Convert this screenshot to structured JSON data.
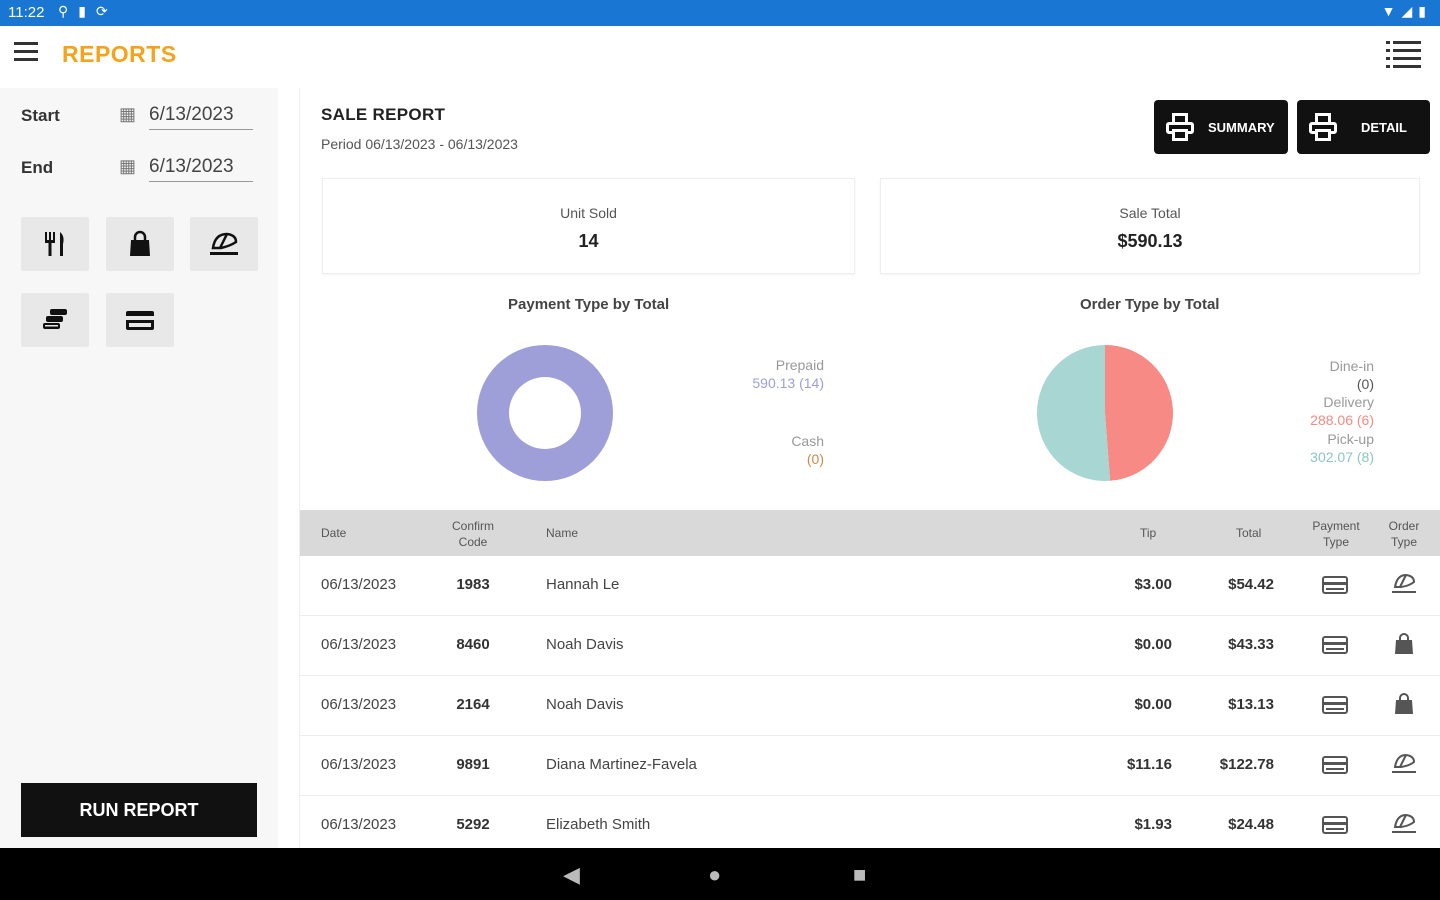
{
  "status_bar": {
    "time": "11:22",
    "left_icons": [
      "usb-icon",
      "sd-card-icon",
      "sync-icon"
    ],
    "right_icons": [
      "wifi-icon",
      "signal-icon",
      "battery-icon"
    ]
  },
  "app_bar": {
    "title": "REPORTS",
    "title_color": "#f7a21b"
  },
  "filters": {
    "start_label": "Start",
    "start_value": "6/13/2023",
    "end_label": "End",
    "end_value": "6/13/2023",
    "order_type_buttons": [
      "dine-in-icon",
      "bag-icon",
      "delivery-icon"
    ],
    "payment_type_buttons": [
      "cash-icon",
      "card-icon"
    ],
    "run_label": "RUN REPORT"
  },
  "report": {
    "title": "SALE REPORT",
    "period": "Period 06/13/2023 - 06/13/2023",
    "summary_label": "SUMMARY",
    "detail_label": "DETAIL",
    "unit_sold_label": "Unit Sold",
    "unit_sold_value": "14",
    "sale_total_label": "Sale Total",
    "sale_total_value": "$590.13"
  },
  "chart_data": [
    {
      "type": "pie",
      "title": "Payment Type by Total",
      "categories": [
        "Prepaid",
        "Cash"
      ],
      "values": [
        590.13,
        0
      ],
      "value_labels": [
        "590.13 (14)",
        "(0)"
      ],
      "colors": [
        "#9e9ed8",
        "#c98a4e"
      ],
      "donut": true
    },
    {
      "type": "pie",
      "title": "Order Type by Total",
      "categories": [
        "Dine-in",
        "Delivery",
        "Pick-up"
      ],
      "values": [
        0,
        288.06,
        302.07
      ],
      "value_labels": [
        "(0)",
        "288.06 (6)",
        "302.07 (8)"
      ],
      "colors": [
        "#5b5b78",
        "#f78a84",
        "#a8d6d2"
      ]
    }
  ],
  "table": {
    "headers": {
      "date": "Date",
      "code": [
        "Confirm",
        "Code"
      ],
      "name": "Name",
      "tip": "Tip",
      "total": "Total",
      "pay": [
        "Payment",
        "Type"
      ],
      "order": [
        "Order",
        "Type"
      ]
    },
    "rows": [
      {
        "date": "06/13/2023",
        "code": "1983",
        "name": "Hannah Le",
        "tip": "$3.00",
        "total": "$54.42",
        "pay": "card-icon",
        "order": "delivery-icon"
      },
      {
        "date": "06/13/2023",
        "code": "8460",
        "name": "Noah Davis",
        "tip": "$0.00",
        "total": "$43.33",
        "pay": "card-icon",
        "order": "bag-icon"
      },
      {
        "date": "06/13/2023",
        "code": "2164",
        "name": "Noah Davis",
        "tip": "$0.00",
        "total": "$13.13",
        "pay": "card-icon",
        "order": "bag-icon"
      },
      {
        "date": "06/13/2023",
        "code": "9891",
        "name": "Diana Martinez-Favela",
        "tip": "$11.16",
        "total": "$122.78",
        "pay": "card-icon",
        "order": "delivery-icon"
      },
      {
        "date": "06/13/2023",
        "code": "5292",
        "name": "Elizabeth Smith",
        "tip": "$1.93",
        "total": "$24.48",
        "pay": "card-icon",
        "order": "delivery-icon"
      }
    ]
  },
  "nav_bar": {
    "buttons": [
      "back-icon",
      "home-icon",
      "recents-icon"
    ]
  }
}
